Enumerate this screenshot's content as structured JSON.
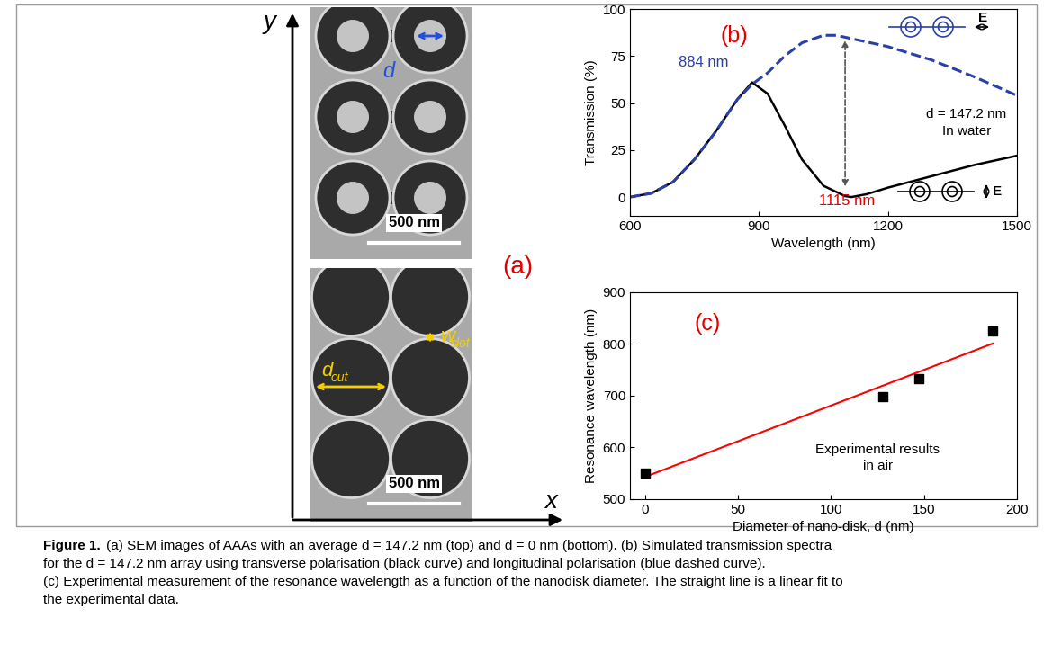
{
  "panel_a": {
    "label": "(a)",
    "axis_labels": {
      "x": "x",
      "y": "y"
    },
    "top_image": {
      "scale_bar": "500 nm",
      "dimension": "d"
    },
    "bottom_image": {
      "scale_bar": "500 nm",
      "dimensions": [
        {
          "symbol": "w",
          "subscript": "slot"
        },
        {
          "symbol": "d",
          "subscript": "out"
        }
      ]
    }
  },
  "chart_data": [
    {
      "type": "line",
      "label": "(b)",
      "x_label": "Wavelength (nm)",
      "y_label": "Transmission (%)",
      "xlim": [
        600,
        1500
      ],
      "xticks": [
        600,
        900,
        1200,
        1500
      ],
      "ylim": [
        -10,
        100
      ],
      "yticks": [
        0,
        25,
        50,
        75,
        100
      ],
      "series": [
        {
          "color": "#000000",
          "line_style": "solid",
          "icon_label": "E",
          "x": [
            600,
            650,
            700,
            750,
            800,
            850,
            884,
            920,
            960,
            1000,
            1050,
            1100,
            1115,
            1150,
            1200,
            1300,
            1400,
            1500
          ],
          "values": [
            0,
            2,
            8,
            20,
            35,
            52,
            61,
            55,
            38,
            20,
            6,
            0.5,
            0,
            1.5,
            5,
            11,
            17,
            22
          ]
        },
        {
          "color": "#2b3fa8",
          "line_style": "dashed",
          "icon_label": "E",
          "x": [
            600,
            650,
            700,
            750,
            800,
            850,
            884,
            920,
            960,
            1000,
            1050,
            1080,
            1120,
            1200,
            1300,
            1400,
            1500
          ],
          "values": [
            0,
            2,
            8,
            20,
            35,
            52,
            60,
            66,
            75,
            82,
            86,
            86,
            84,
            80,
            73,
            64,
            54
          ]
        }
      ],
      "peak_labels": [
        {
          "label": "884 nm",
          "color": "#2b3fa8"
        },
        {
          "label": "1115 nm",
          "color": "#e00000"
        }
      ],
      "annotation": [
        "d = 147.2 nm",
        "In water"
      ]
    },
    {
      "type": "scatter",
      "label": "(c)",
      "x_label": "Diameter of nano-disk, d (nm)",
      "y_label": "Resonance wavelength (nm)",
      "xlim": [
        -8,
        200
      ],
      "xticks": [
        0,
        50,
        100,
        150,
        200
      ],
      "ylim": [
        500,
        900
      ],
      "yticks": [
        500,
        600,
        700,
        800,
        900
      ],
      "x": [
        0,
        128,
        147.2,
        187
      ],
      "values": [
        550,
        698,
        733,
        825
      ],
      "color": "#000000",
      "marker": "square",
      "fit": {
        "x": [
          0,
          187
        ],
        "values": [
          543,
          801
        ],
        "color": "#ff0000"
      },
      "annotation": "Experimental results\nin air"
    }
  ],
  "caption": {
    "label": "Figure 1.",
    "lines": [
      "(a) SEM images of AAAs with an average d = 147.2 nm (top) and d = 0 nm (bottom). (b) Simulated transmission spectra",
      "for the d = 147.2 nm array using transverse polarisation (black curve) and longitudinal polarisation (blue dashed curve).",
      "(c) Experimental measurement of the resonance wavelength as a function of the nanodisk diameter. The straight line is a linear fit to",
      "the experimental data."
    ]
  }
}
